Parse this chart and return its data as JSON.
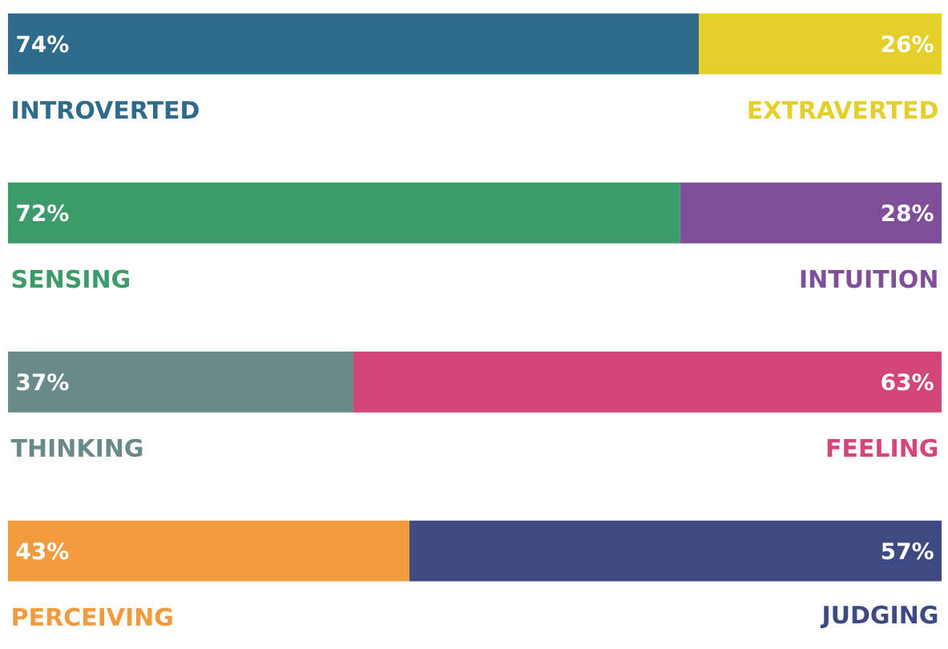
{
  "chart_data": {
    "type": "bar",
    "orientation": "horizontal",
    "stacked": true,
    "categories": [
      "INTROVERTED",
      "SENSING",
      "THINKING",
      "PERCEIVING"
    ],
    "annotations": [
      "EXTRAVERTED",
      "INTUITION",
      "FEELING",
      "JUDGING"
    ],
    "series": [
      {
        "colors": [
          "#2f6b8c",
          "#3d9a6a",
          "#6a8a8a",
          "#f19a3e"
        ],
        "values": [
          74,
          72,
          37,
          43
        ],
        "value_labels": [
          "74%",
          "72%",
          "37%",
          "43%"
        ]
      },
      {
        "colors": [
          "#e5cf2a",
          "#7f4f9a",
          "#d4457a",
          "#3f4a82"
        ],
        "values": [
          26,
          28,
          63,
          57
        ],
        "value_labels": [
          "26%",
          "28%",
          "63%",
          "57%"
        ]
      }
    ]
  }
}
